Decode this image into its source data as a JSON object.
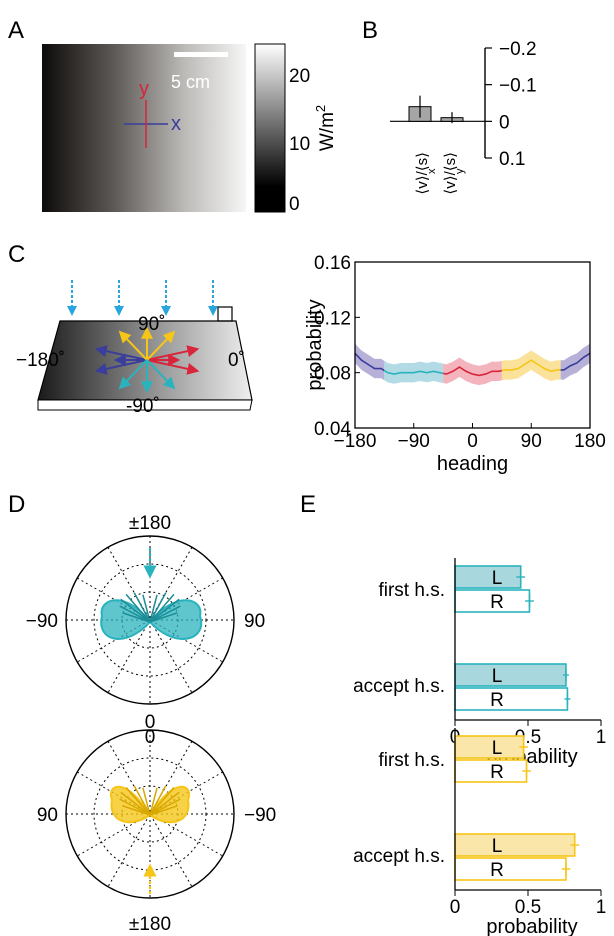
{
  "panels": {
    "A": {
      "label": "A",
      "scalebar": "5 cm",
      "axis_y": "y",
      "axis_x": "x",
      "colorbar_ticks": [
        "20",
        "10",
        "0"
      ],
      "colorbar_unit": "W/m",
      "colorbar_unit_sup": "2",
      "colorbar_range": [
        0,
        25
      ]
    },
    "B": {
      "label": "B",
      "bar_labels": [
        "⟨v⟩/⟨s⟩",
        "⟨v⟩/⟨s⟩"
      ],
      "bar_label_subs": [
        "x",
        "y"
      ]
    },
    "C": {
      "label": "C",
      "angle_labels": [
        "90˚",
        "−180˚",
        "0˚",
        "-90˚"
      ]
    },
    "D": {
      "label": "D",
      "top_polar_labels": {
        "top": "±180",
        "left": "−90",
        "right": "90",
        "bottom": "0"
      },
      "bottom_polar_labels": {
        "top": "0",
        "left": "90",
        "right": "−90",
        "bottom": "±180"
      }
    },
    "E": {
      "label": "E",
      "bar_letters": [
        "L",
        "R",
        "L",
        "R"
      ]
    }
  },
  "colors": {
    "teal": "#2ab3bd",
    "teal_fill": "#a8d8de",
    "yellow": "#f5c518",
    "yellow_fill": "#f9e6a8",
    "red": "#d8253b",
    "blue": "#3a3d9a",
    "purple_band": "#b7b1d9",
    "lightblue_band": "#b3dbe5",
    "pink_band": "#f4b4bd",
    "yellow_band": "#fbe29b",
    "arrow_blue": "#2aa6de",
    "bar_gray": "#a6a6a6"
  },
  "chart_data": [
    {
      "id": "B",
      "type": "bar",
      "categories": [
        "⟨v_x⟩/⟨s⟩",
        "⟨v_y⟩/⟨s⟩"
      ],
      "values": [
        -0.04,
        -0.01
      ],
      "errors": [
        0.03,
        0.015
      ],
      "ylim": [
        -0.2,
        0.1
      ],
      "yticks": [
        -0.2,
        -0.1,
        0,
        0.1
      ],
      "ytick_labels": [
        "−0.2",
        "−0.1",
        "0",
        "0.1"
      ],
      "inverted": true
    },
    {
      "id": "C",
      "type": "line",
      "xlabel": "heading",
      "ylabel": "probability",
      "xlim": [
        -180,
        180
      ],
      "ylim": [
        0.04,
        0.16
      ],
      "xticks": [
        -180,
        -90,
        0,
        90,
        180
      ],
      "xtick_labels": [
        "−180",
        "−90",
        "0",
        "90",
        "180"
      ],
      "yticks": [
        0.04,
        0.08,
        0.12,
        0.16
      ],
      "ytick_labels": [
        "0.04",
        "0.08",
        "0.12",
        "0.16"
      ],
      "x": [
        -180,
        -170,
        -160,
        -150,
        -140,
        -130,
        -120,
        -110,
        -100,
        -90,
        -80,
        -70,
        -60,
        -50,
        -40,
        -30,
        -20,
        -10,
        0,
        10,
        20,
        30,
        40,
        50,
        60,
        70,
        80,
        90,
        100,
        110,
        120,
        130,
        140,
        150,
        160,
        170,
        180
      ],
      "y": [
        0.094,
        0.089,
        0.086,
        0.083,
        0.083,
        0.08,
        0.079,
        0.08,
        0.08,
        0.08,
        0.081,
        0.08,
        0.081,
        0.08,
        0.079,
        0.081,
        0.084,
        0.081,
        0.079,
        0.078,
        0.079,
        0.081,
        0.081,
        0.082,
        0.082,
        0.083,
        0.086,
        0.089,
        0.086,
        0.083,
        0.081,
        0.082,
        0.082,
        0.085,
        0.087,
        0.091,
        0.094
      ],
      "band": 0.007,
      "segments": [
        {
          "range": [
            -180,
            -135
          ],
          "color": "blue"
        },
        {
          "range": [
            -135,
            -45
          ],
          "color": "teal"
        },
        {
          "range": [
            -45,
            45
          ],
          "color": "red"
        },
        {
          "range": [
            45,
            135
          ],
          "color": "yellow"
        },
        {
          "range": [
            135,
            180
          ],
          "color": "blue"
        }
      ]
    },
    {
      "id": "D-top",
      "type": "polar",
      "angle_labels": [
        "±180",
        "90",
        "0",
        "−90"
      ],
      "r_max": 1
    },
    {
      "id": "D-bottom",
      "type": "polar",
      "angle_labels": [
        "0",
        "−90",
        "±180",
        "90"
      ],
      "r_max": 1
    },
    {
      "id": "E-top",
      "type": "bar",
      "orientation": "horizontal",
      "categories": [
        "first h.s.",
        "accept h.s."
      ],
      "series": [
        {
          "name": "L",
          "values": [
            0.45,
            0.76
          ],
          "errors": [
            0.03,
            0.02
          ]
        },
        {
          "name": "R",
          "values": [
            0.51,
            0.77
          ],
          "errors": [
            0.03,
            0.02
          ]
        }
      ],
      "xlabel": "probability",
      "xlim": [
        0,
        1
      ],
      "xticks": [
        0,
        0.5,
        1
      ],
      "xtick_labels": [
        "0",
        "0.5",
        "1"
      ]
    },
    {
      "id": "E-bottom",
      "type": "bar",
      "orientation": "horizontal",
      "categories": [
        "first h.s.",
        "accept h.s."
      ],
      "series": [
        {
          "name": "L",
          "values": [
            0.47,
            0.82
          ],
          "errors": [
            0.03,
            0.03
          ]
        },
        {
          "name": "R",
          "values": [
            0.49,
            0.76
          ],
          "errors": [
            0.03,
            0.03
          ]
        }
      ],
      "xlabel": "probability",
      "xlim": [
        0,
        1
      ],
      "xticks": [
        0,
        0.5,
        1
      ],
      "xtick_labels": [
        "0",
        "0.5",
        "1"
      ]
    }
  ]
}
